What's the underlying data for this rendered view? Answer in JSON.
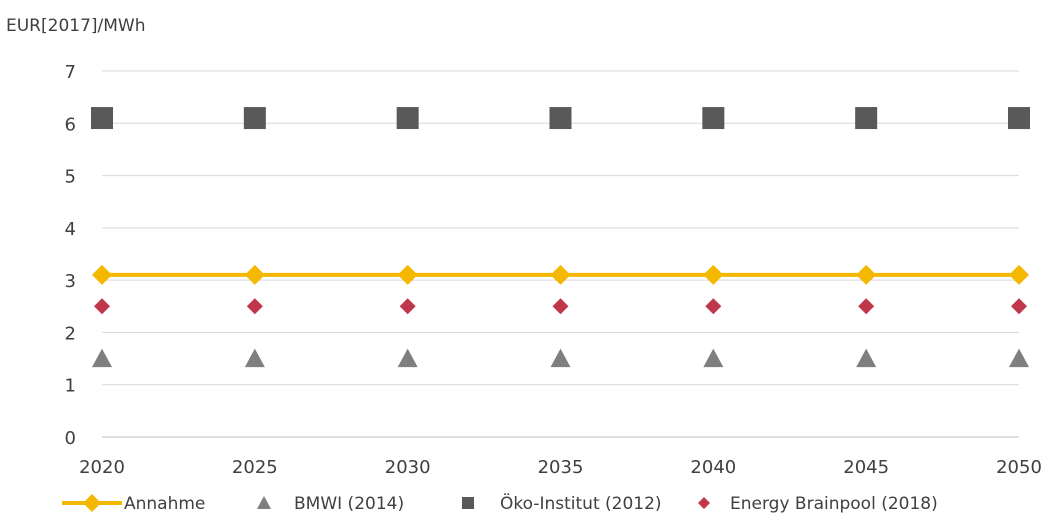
{
  "chart_data": {
    "type": "line",
    "ylabel": "EUR[2017]/MWh",
    "xlabel": "",
    "title": "",
    "x": [
      2020,
      2025,
      2030,
      2035,
      2040,
      2045,
      2050
    ],
    "ylim": [
      0,
      7
    ],
    "yticks": [
      0,
      1,
      2,
      3,
      4,
      5,
      6,
      7
    ],
    "grid": true,
    "legend_position": "bottom",
    "series": [
      {
        "name": "Annahme",
        "marker": "diamond",
        "line": true,
        "color": "#F5B800",
        "values": [
          3.1,
          3.1,
          3.1,
          3.1,
          3.1,
          3.1,
          3.1
        ]
      },
      {
        "name": "BMWI (2014)",
        "marker": "triangle",
        "line": false,
        "color": "#7F7F7F",
        "values": [
          1.5,
          1.5,
          1.5,
          1.5,
          1.5,
          1.5,
          1.5
        ]
      },
      {
        "name": "Öko-Institut (2012)",
        "marker": "square",
        "line": false,
        "color": "#595959",
        "values": [
          6.1,
          6.1,
          6.1,
          6.1,
          6.1,
          6.1,
          6.1
        ]
      },
      {
        "name": "Energy Brainpool (2018)",
        "marker": "diamond",
        "line": false,
        "color": "#C0364A",
        "values": [
          2.5,
          2.5,
          2.5,
          2.5,
          2.5,
          2.5,
          2.5
        ]
      }
    ]
  }
}
